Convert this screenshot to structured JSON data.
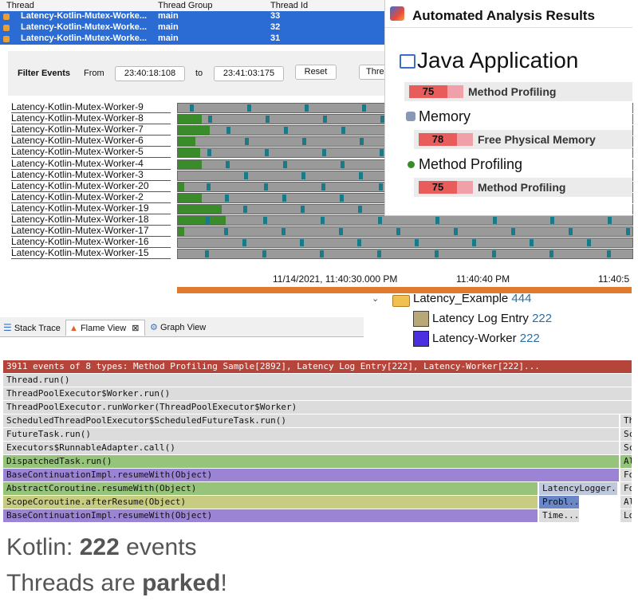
{
  "thread_table": {
    "headers": [
      "Thread",
      "Thread Group",
      "Thread Id"
    ],
    "rows": [
      {
        "thread": "Latency-Kotlin-Mutex-Worke...",
        "group": "main",
        "id": "33"
      },
      {
        "thread": "Latency-Kotlin-Mutex-Worke...",
        "group": "main",
        "id": "32"
      },
      {
        "thread": "Latency-Kotlin-Mutex-Worke...",
        "group": "main",
        "id": "31"
      }
    ]
  },
  "filter_bar": {
    "title": "Filter Events",
    "from_label": "From",
    "from_value": "23:40:18:108",
    "to_label": "to",
    "to_value": "23:41:03:175",
    "reset_label": "Reset",
    "cut_label": "Thre"
  },
  "timeline": {
    "threads": [
      "Latency-Kotlin-Mutex-Worker-9",
      "Latency-Kotlin-Mutex-Worker-8",
      "Latency-Kotlin-Mutex-Worker-7",
      "Latency-Kotlin-Mutex-Worker-6",
      "Latency-Kotlin-Mutex-Worker-5",
      "Latency-Kotlin-Mutex-Worker-4",
      "Latency-Kotlin-Mutex-Worker-3",
      "Latency-Kotlin-Mutex-Worker-20",
      "Latency-Kotlin-Mutex-Worker-2",
      "Latency-Kotlin-Mutex-Worker-19",
      "Latency-Kotlin-Mutex-Worker-18",
      "Latency-Kotlin-Mutex-Worker-17",
      "Latency-Kotlin-Mutex-Worker-16",
      "Latency-Kotlin-Mutex-Worker-15"
    ],
    "axis_labels": [
      "11/14/2021, 11:40:30.000 PM",
      "11:40:40 PM",
      "11:40:5"
    ]
  },
  "analysis": {
    "title": "Automated Analysis Results",
    "app_title": "Java Application",
    "sections": [
      {
        "heading": "",
        "score": "75",
        "rule": "Method Profiling"
      },
      {
        "heading": "Memory",
        "score": "78",
        "rule": "Free Physical Memory"
      },
      {
        "heading": "Method Profiling",
        "score": "75",
        "rule": "Method Profiling"
      }
    ]
  },
  "legend": {
    "root": "Latency_Example",
    "root_count": "444",
    "items": [
      {
        "label": "Latency Log Entry",
        "count": "222",
        "color": "#b8a878"
      },
      {
        "label": "Latency-Worker",
        "count": "222",
        "color": "#4a2ee0"
      }
    ]
  },
  "tabs": [
    "Stack Trace",
    "Flame View",
    "Graph View"
  ],
  "flame": {
    "rows": [
      {
        "text": "3911 events of 8 types: Method Profiling Sample[2892], Latency Log Entry[222], Latency-Worker[222]...",
        "color": "#b5443a"
      },
      {
        "text": "Thread.run()",
        "color": "#dcdcdc"
      },
      {
        "text": "ThreadPoolExecutor$Worker.run()",
        "color": "#dcdcdc"
      },
      {
        "text": "ThreadPoolExecutor.runWorker(ThreadPoolExecutor$Worker)",
        "color": "#dcdcdc"
      },
      {
        "text": "ScheduledThreadPoolExecutor$ScheduledFutureTask.run()",
        "color": "#dcdcdc",
        "side": "Th"
      },
      {
        "text": "FutureTask.run()",
        "color": "#dcdcdc",
        "side": "Sc"
      },
      {
        "text": "Executors$RunnableAdapter.call()",
        "color": "#dcdcdc",
        "side": "Sc"
      },
      {
        "text": "DispatchedTask.run()",
        "color": "#96c47a",
        "side": "Al"
      },
      {
        "text": "BaseContinuationImpl.resumeWith(Object)",
        "color": "#9c84d4",
        "side": "Fo"
      },
      {
        "text": "AbstractCoroutine.resumeWith(Object)",
        "color": "#96c47a",
        "side": "Fo",
        "mid": "LatencyLogger..."
      },
      {
        "text": "ScopeCoroutine.afterResume(Object)",
        "color": "#c8cc80",
        "side": "Al",
        "mid": "Probl..."
      },
      {
        "text": "BaseContinuationImpl.resumeWith(Object)",
        "color": "#9c84d4",
        "side": "Lo",
        "mid": "Time..."
      }
    ]
  },
  "caption": {
    "line1_prefix": "Kotlin:",
    "line1_bold": "222",
    "line1_suffix": "events",
    "line2_prefix": "Threads are",
    "line2_bold": "parked",
    "line2_suffix": "!"
  }
}
